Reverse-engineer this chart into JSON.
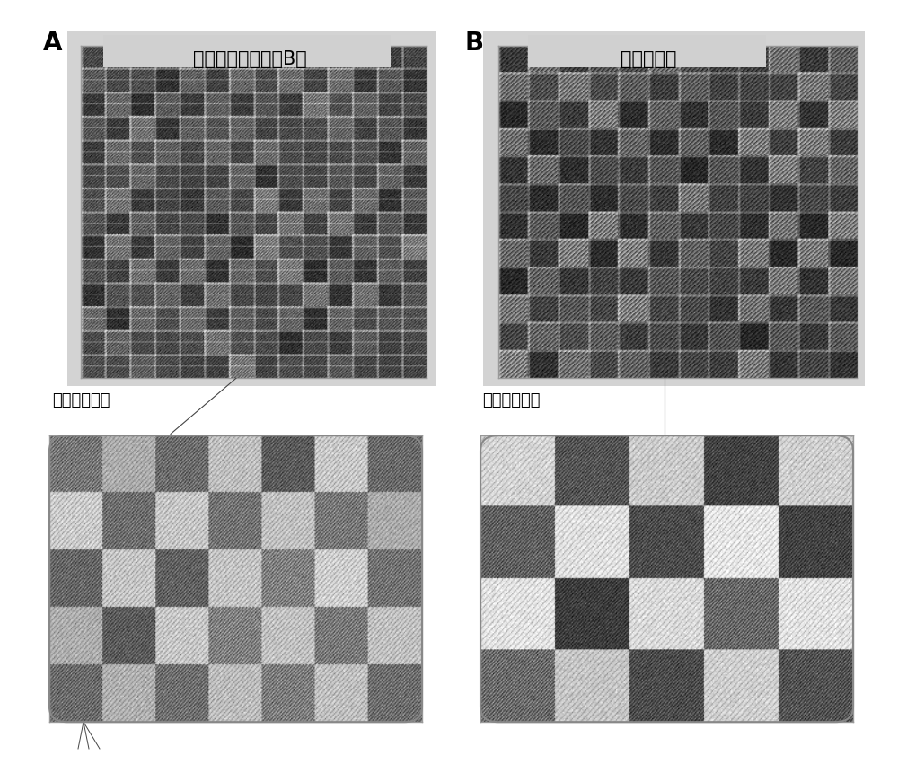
{
  "label_A": "A",
  "label_B": "B",
  "title_A": "处理前样品（样品B）",
  "title_B": "处理后样品",
  "zoom_label": "圈内放大照片",
  "bg_color": "#ffffff",
  "panel_bg_A": "#d2d2d2",
  "panel_bg_B": "#d2d2d2",
  "title_bg": "#d0d0d0",
  "label_fontsize": 20,
  "title_fontsize": 15,
  "zoom_label_fontsize": 13
}
